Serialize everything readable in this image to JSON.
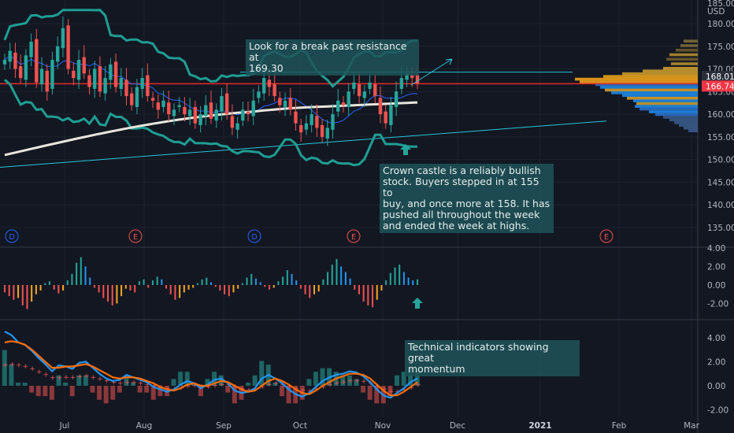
{
  "chart_data": [
    {
      "type": "candlestick",
      "panel": "price",
      "currency_label": "USD",
      "ylim": [
        132,
        184
      ],
      "y_ticks": [
        "135.00",
        "140.00",
        "145.00",
        "150.00",
        "155.00",
        "160.00",
        "165.00",
        "170.00",
        "175.00",
        "180.00"
      ],
      "y_tick_values": [
        135,
        140,
        145,
        150,
        155,
        160,
        165,
        170,
        175,
        180
      ],
      "top_tick": "185.00",
      "x_labels": [
        "Jul",
        "Aug",
        "Sep",
        "Oct",
        "Nov",
        "Dec",
        "2021",
        "Feb",
        "Mar"
      ],
      "price_labels": [
        {
          "text": "168.01",
          "value": 168.01,
          "color": "#2b2f3a"
        },
        {
          "text": "166.74",
          "value": 166.74,
          "color": "#f23645"
        }
      ],
      "resistance_level": 169.3,
      "horizontal_red_line": 166.74,
      "horizontal_cyan_line": 169.3,
      "events": [
        {
          "label": "D",
          "kind": "dividend",
          "color": "#2962ff"
        },
        {
          "label": "E",
          "kind": "earnings",
          "color": "#ef5350"
        },
        {
          "label": "D",
          "kind": "dividend",
          "color": "#2962ff"
        },
        {
          "label": "E",
          "kind": "earnings",
          "color": "#ef5350"
        },
        {
          "label": "E",
          "kind": "earnings",
          "color": "#ef5350"
        }
      ],
      "candles_close_path": [
        172,
        174,
        170,
        168,
        173,
        176,
        167,
        170,
        165,
        172,
        175,
        179,
        170,
        168,
        172,
        169,
        166,
        170,
        165,
        168,
        171,
        166,
        168,
        164,
        162,
        166,
        168,
        164,
        163,
        161,
        163,
        160,
        161,
        162,
        160,
        161,
        158,
        160,
        162,
        159,
        161,
        164,
        160,
        157,
        158,
        161,
        160,
        163,
        165,
        168,
        166,
        164,
        162,
        163,
        161,
        158,
        156,
        158,
        160,
        157,
        155,
        157,
        160,
        163,
        162,
        165,
        167,
        164,
        165,
        167,
        164,
        160,
        158,
        162,
        165,
        168,
        169,
        168,
        166.74
      ],
      "colors": {
        "up": "#26a69a",
        "down": "#ef5350",
        "sma": "#e8e6dc",
        "bb": "#1f9e93",
        "ema": "#2962ff",
        "red_line": "#e52a2a",
        "cyan_line": "#26c6da"
      }
    },
    {
      "type": "bar",
      "panel": "histogram_1",
      "ylim": [
        -3,
        4.2
      ],
      "y_ticks": [
        "4.00",
        "2.00",
        "0.00",
        "-2.00"
      ],
      "y_tick_values": [
        4,
        2,
        0,
        -2
      ],
      "values": [
        -0.8,
        -1.2,
        -1.6,
        -1.4,
        -2.2,
        -2.6,
        -1.8,
        -1.0,
        -0.6,
        0.2,
        0.4,
        -0.5,
        -0.9,
        -0.6,
        0.5,
        1.2,
        2.4,
        3.0,
        2.0,
        0.8,
        -0.3,
        -0.8,
        -1.4,
        -1.8,
        -2.2,
        -2.0,
        -1.2,
        -0.4,
        -0.6,
        -0.8,
        0.4,
        0.6,
        -0.3,
        0.5,
        0.9,
        0.6,
        -0.4,
        -1.0,
        -1.6,
        -1.4,
        -0.8,
        -0.5,
        -0.3,
        0.2,
        0.6,
        0.8,
        0.3,
        -0.2,
        -0.6,
        -1.0,
        -1.2,
        -0.8,
        -0.4,
        0.2,
        0.8,
        1.2,
        0.7,
        0.3,
        -0.2,
        -0.5,
        -0.3,
        0.4,
        0.9,
        1.6,
        1.2,
        0.5,
        -0.4,
        -1.0,
        -1.4,
        -1.0,
        -0.7,
        0.6,
        1.4,
        2.2,
        2.8,
        2.0,
        1.4,
        0.7,
        -0.5,
        -1.0,
        -1.8,
        -2.2,
        -2.4,
        -1.6,
        -0.6,
        0.5,
        1.3,
        1.9,
        2.2,
        1.4,
        0.8,
        0.5,
        0.6
      ]
    },
    {
      "type": "line",
      "panel": "oscillator",
      "ylim": [
        -2.4,
        5
      ],
      "y_ticks": [
        "4.00",
        "2.00",
        "0.00",
        "-2.00"
      ],
      "y_tick_values": [
        4,
        2,
        0,
        -2
      ],
      "series": [
        {
          "color": "#2196f3",
          "values": [
            4.5,
            4.2,
            3.6,
            3.4,
            2.9,
            2.3,
            1.8,
            1.2,
            1.7,
            1.6,
            1.4,
            1.9,
            2.0,
            1.5,
            1.0,
            0.6,
            0.4,
            0.5,
            0.9,
            0.7,
            0.5,
            0.3,
            -0.1,
            -0.3,
            -0.5,
            -0.3,
            0.1,
            0.4,
            0.2,
            -0.2,
            0.1,
            0.5,
            0.6,
            0.2,
            -0.4,
            -0.6,
            -0.5,
            -0.2,
            0.6,
            0.9,
            0.6,
            0.2,
            -0.3,
            -0.7,
            -0.9,
            -0.6,
            -0.1,
            0.4,
            0.7,
            0.9,
            1.0,
            1.2,
            1.1,
            0.8,
            0.3,
            -0.3,
            -0.8,
            -1.0,
            -0.6,
            -0.2,
            0.3,
            0.6
          ]
        },
        {
          "color": "#ff6d00",
          "values": [
            3.6,
            3.7,
            3.6,
            3.4,
            3.0,
            2.5,
            2.0,
            1.5,
            1.5,
            1.6,
            1.6,
            1.7,
            1.8,
            1.6,
            1.3,
            1.0,
            0.7,
            0.6,
            0.7,
            0.7,
            0.6,
            0.4,
            0.2,
            -0.1,
            -0.3,
            -0.4,
            -0.2,
            0.1,
            0.2,
            0.0,
            0.0,
            0.2,
            0.4,
            0.3,
            0.0,
            -0.3,
            -0.5,
            -0.4,
            0.0,
            0.4,
            0.6,
            0.4,
            0.1,
            -0.3,
            -0.6,
            -0.7,
            -0.4,
            0.0,
            0.3,
            0.6,
            0.8,
            1.0,
            1.0,
            0.9,
            0.6,
            0.1,
            -0.4,
            -0.8,
            -0.8,
            -0.5,
            -0.1,
            0.3
          ]
        },
        {
          "color": "#f57f17",
          "values": []
        }
      ]
    }
  ],
  "annotations": {
    "resistance_note": "Look for a break past resistance at\n169.30",
    "buyers_note": "Crown castle is a reliably bullish\nstock. Buyers stepped in at 155 to\nbuy, and once more at 158. It has\npushed all throughout the week\nand ended the week at highs.",
    "momentum_note": "Technical indicators showing great\nmomentum"
  }
}
